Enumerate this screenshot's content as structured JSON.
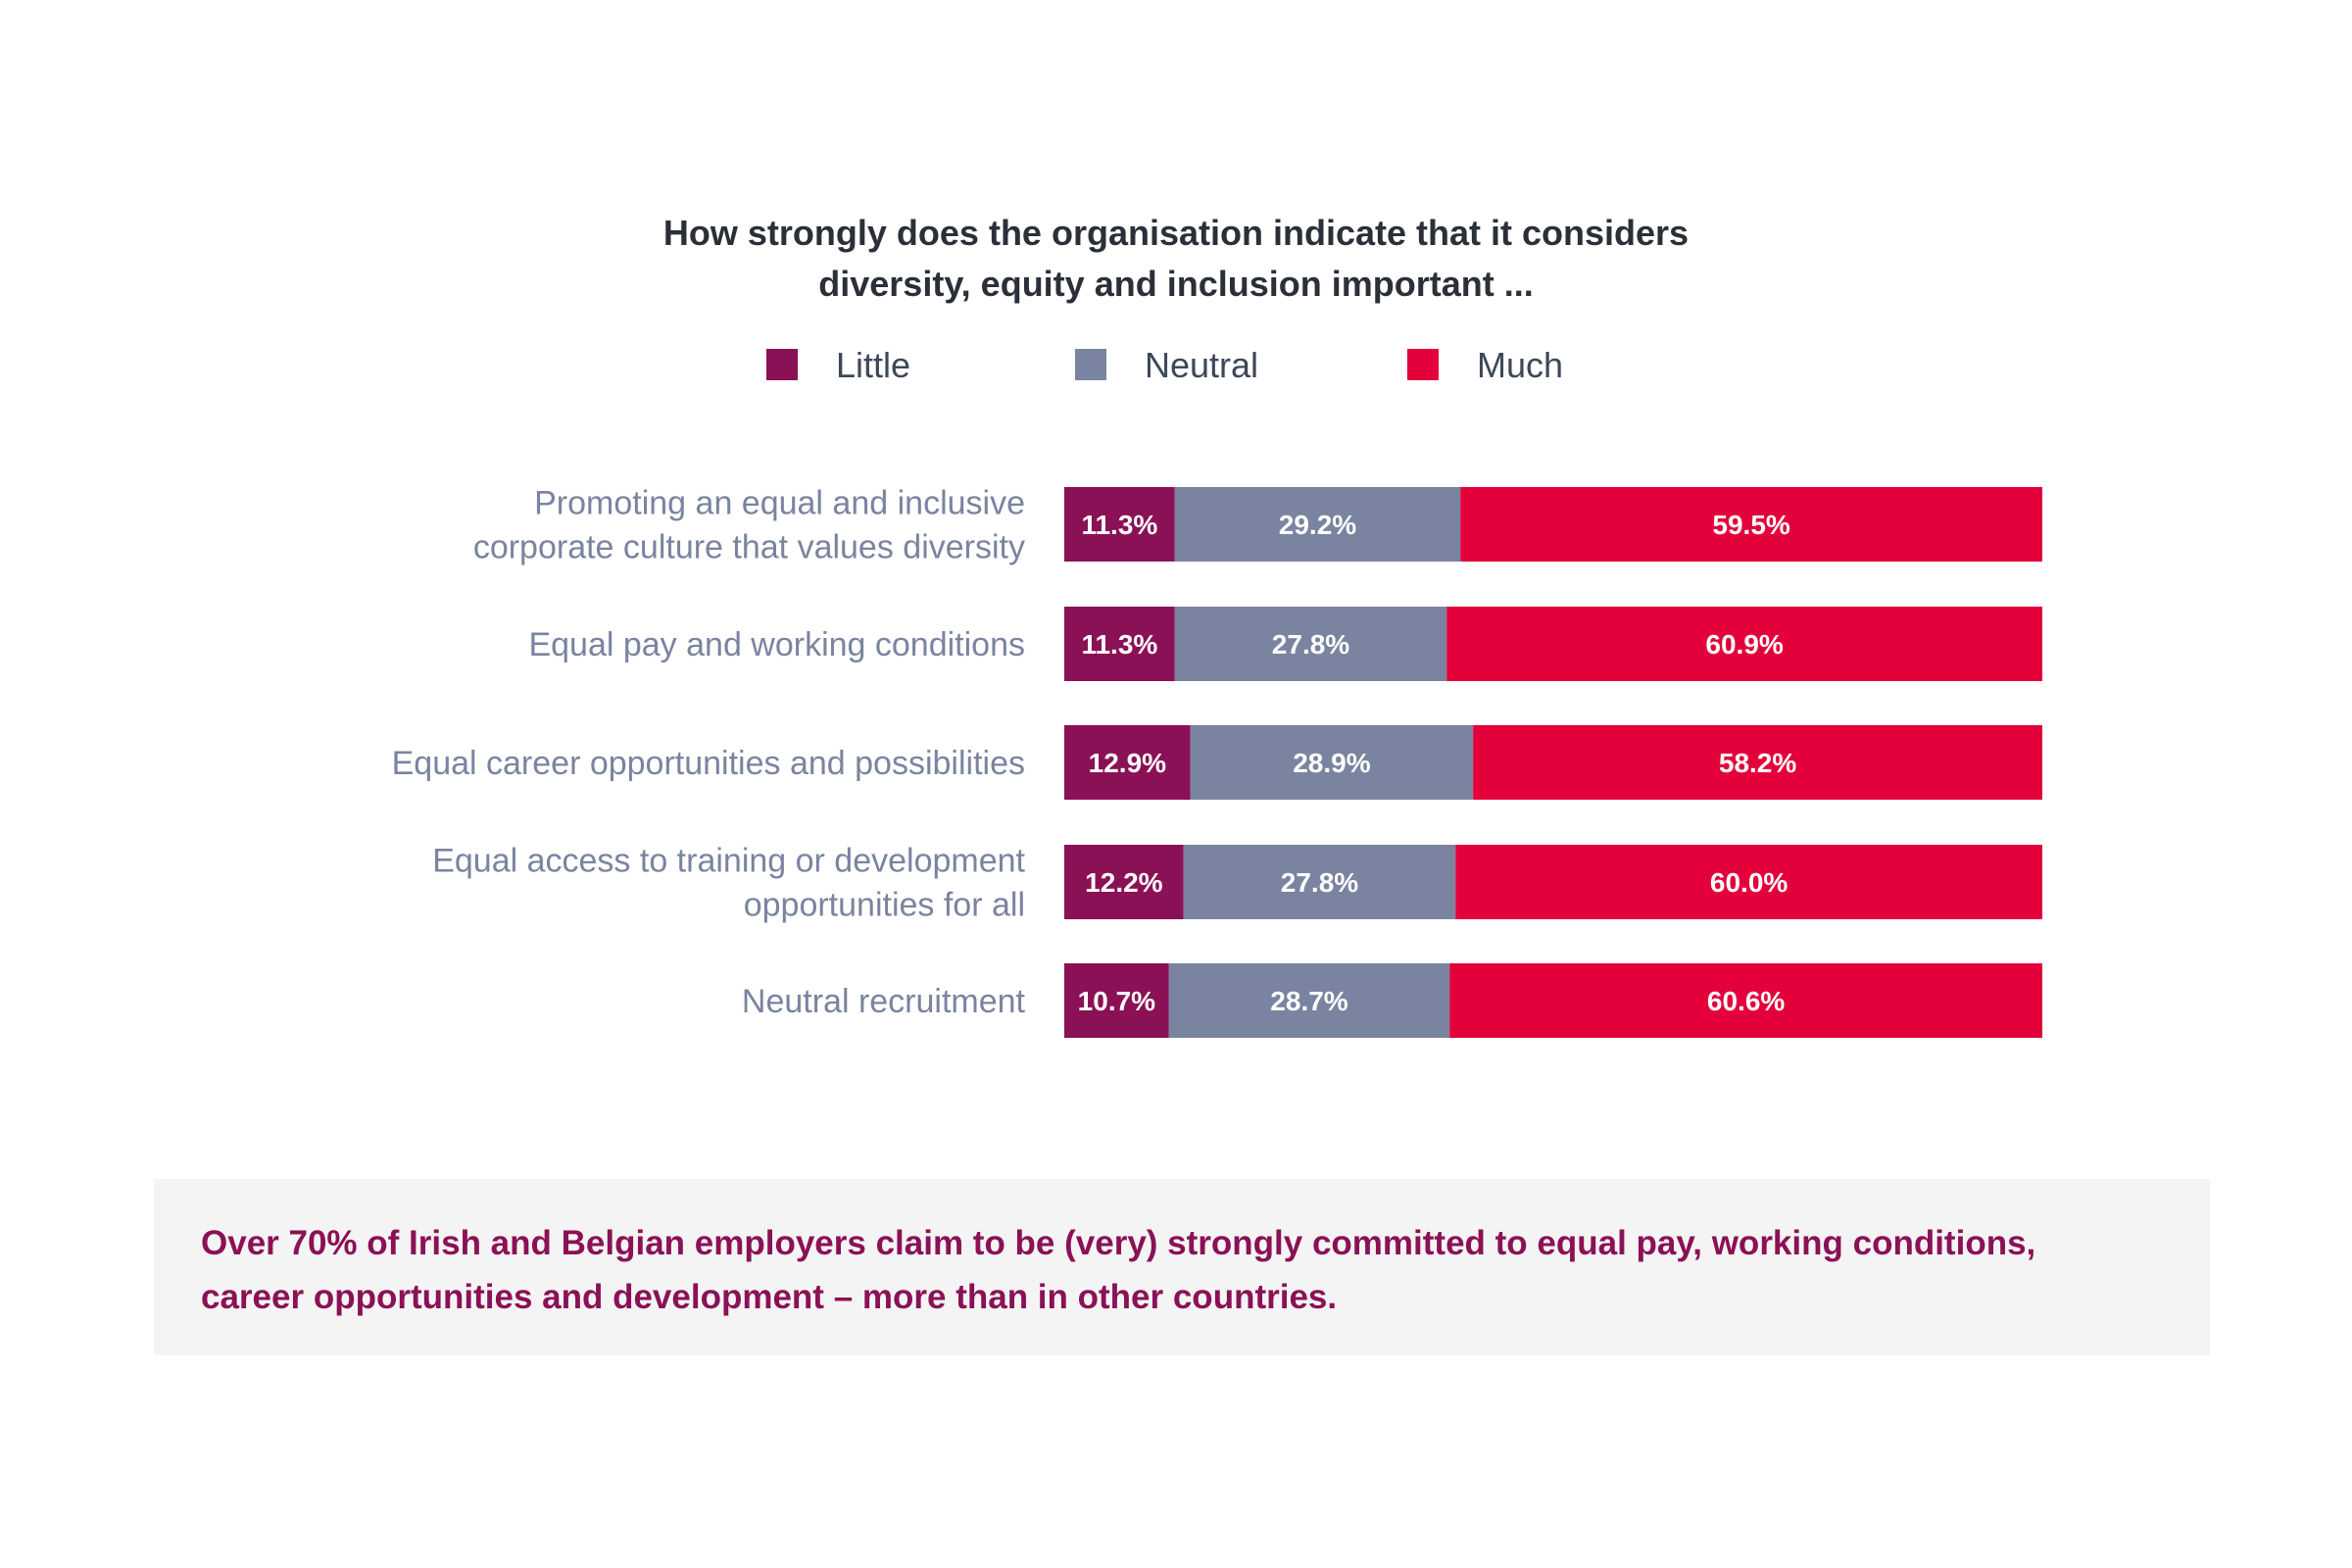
{
  "chart_data": {
    "type": "bar",
    "orientation": "horizontal",
    "stacked": true,
    "title_lines": [
      "How strongly does the organisation indicate that it considers",
      "diversity, equity and inclusion important ..."
    ],
    "categories": [
      [
        "Promoting an equal and inclusive",
        "corporate culture that values diversity"
      ],
      [
        "Equal pay and working conditions"
      ],
      [
        "Equal career opportunities and possibilities"
      ],
      [
        "Equal access to training or development",
        "opportunities for all"
      ],
      [
        "Neutral recruitment"
      ]
    ],
    "series": [
      {
        "name": "Little",
        "color": "#8b1156",
        "values": [
          11.3,
          11.3,
          12.9,
          12.2,
          10.7
        ],
        "labels": [
          "11.3%",
          "11.3%",
          "12.9%",
          "12.2%",
          "10.7%"
        ]
      },
      {
        "name": "Neutral",
        "color": "#7a84a0",
        "values": [
          29.2,
          27.8,
          28.9,
          27.8,
          28.7
        ],
        "labels": [
          "29.2%",
          "27.8%",
          "28.9%",
          "27.8%",
          "28.7%"
        ]
      },
      {
        "name": "Much",
        "color": "#e4003b",
        "values": [
          59.5,
          60.9,
          58.2,
          60.0,
          60.6
        ],
        "labels": [
          "59.5%",
          "60.9%",
          "58.2%",
          "60.0%",
          "60.6%"
        ]
      }
    ],
    "xlim": [
      0,
      100
    ],
    "xlabel": "",
    "ylabel": "",
    "grid": false,
    "legend_position": "top"
  },
  "insight": {
    "text_line1": "Over 70% of Irish and Belgian employers claim to be (very) strongly committed to equal pay, working conditions,",
    "text_line2": "career opportunities and development – more than in other countries."
  }
}
